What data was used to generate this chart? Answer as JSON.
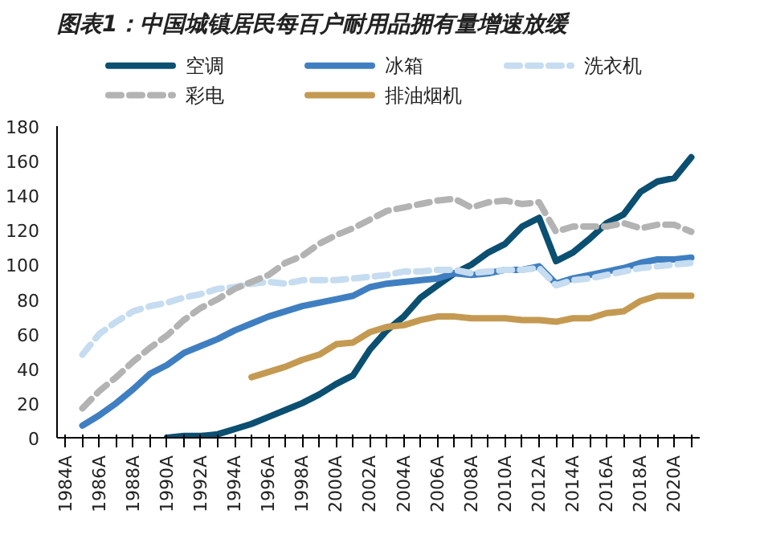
{
  "chart_data": {
    "type": "line",
    "title": "图表1：中国城镇居民每百户耐用品拥有量增速放缓",
    "categories": [
      "1984A",
      null,
      "1986A",
      null,
      "1988A",
      null,
      "1990A",
      null,
      "1992A",
      null,
      "1994A",
      null,
      "1996A",
      null,
      "1998A",
      null,
      "2000A",
      null,
      "2002A",
      null,
      "2004A",
      null,
      "2006A",
      null,
      "2008A",
      null,
      "2010A",
      null,
      "2012A",
      null,
      "2014A",
      null,
      "2016A",
      null,
      "2018A",
      null,
      "2020A",
      null
    ],
    "series": [
      {
        "name": "空调",
        "color": "#0b4f71",
        "line_style": "solid",
        "values": [
          null,
          null,
          null,
          null,
          null,
          null,
          0,
          1,
          1,
          2,
          5,
          8,
          12,
          16,
          20,
          25,
          31,
          36,
          51,
          62,
          70,
          81,
          88,
          95,
          100,
          107,
          112,
          122,
          127,
          102,
          107,
          115,
          124,
          129,
          142,
          148,
          150,
          162
        ]
      },
      {
        "name": "冰箱",
        "color": "#3f7fc1",
        "line_style": "solid",
        "values": [
          null,
          7,
          13,
          20,
          28,
          37,
          42,
          49,
          53,
          57,
          62,
          66,
          70,
          73,
          76,
          78,
          80,
          82,
          87,
          89,
          90,
          91,
          92,
          95,
          94,
          95,
          97,
          97,
          99,
          89,
          92,
          94,
          96,
          98,
          101,
          103,
          103,
          104
        ]
      },
      {
        "name": "洗衣机",
        "color": "#c6dcf0",
        "line_style": "dashed",
        "values": [
          null,
          48,
          60,
          67,
          73,
          76,
          78,
          81,
          83,
          86,
          87,
          89,
          90,
          89,
          91,
          91,
          91,
          92,
          93,
          94,
          96,
          96,
          97,
          97,
          95,
          96,
          97,
          97,
          98,
          88,
          91,
          92,
          94,
          96,
          98,
          99,
          100,
          101
        ]
      },
      {
        "name": "彩电",
        "color": "#b3b3b3",
        "line_style": "dashed",
        "values": [
          null,
          17,
          27,
          35,
          44,
          52,
          59,
          68,
          75,
          80,
          86,
          90,
          94,
          101,
          105,
          112,
          117,
          121,
          126,
          131,
          133,
          135,
          137,
          138,
          133,
          136,
          137,
          135,
          136,
          119,
          122,
          122,
          122,
          124,
          121,
          123,
          123,
          119
        ]
      },
      {
        "name": "排油烟机",
        "color": "#c49a52",
        "line_style": "solid",
        "values": [
          null,
          null,
          null,
          null,
          null,
          null,
          null,
          null,
          null,
          null,
          null,
          35,
          38,
          41,
          45,
          48,
          54,
          55,
          61,
          64,
          65,
          68,
          70,
          70,
          69,
          69,
          69,
          68,
          68,
          67,
          69,
          69,
          72,
          73,
          79,
          82,
          82,
          82
        ]
      }
    ],
    "ylim": [
      0,
      180
    ],
    "yticks": [
      0,
      20,
      40,
      60,
      80,
      100,
      120,
      140,
      160,
      180
    ],
    "grid": false,
    "legend": "top",
    "marker": "none"
  }
}
